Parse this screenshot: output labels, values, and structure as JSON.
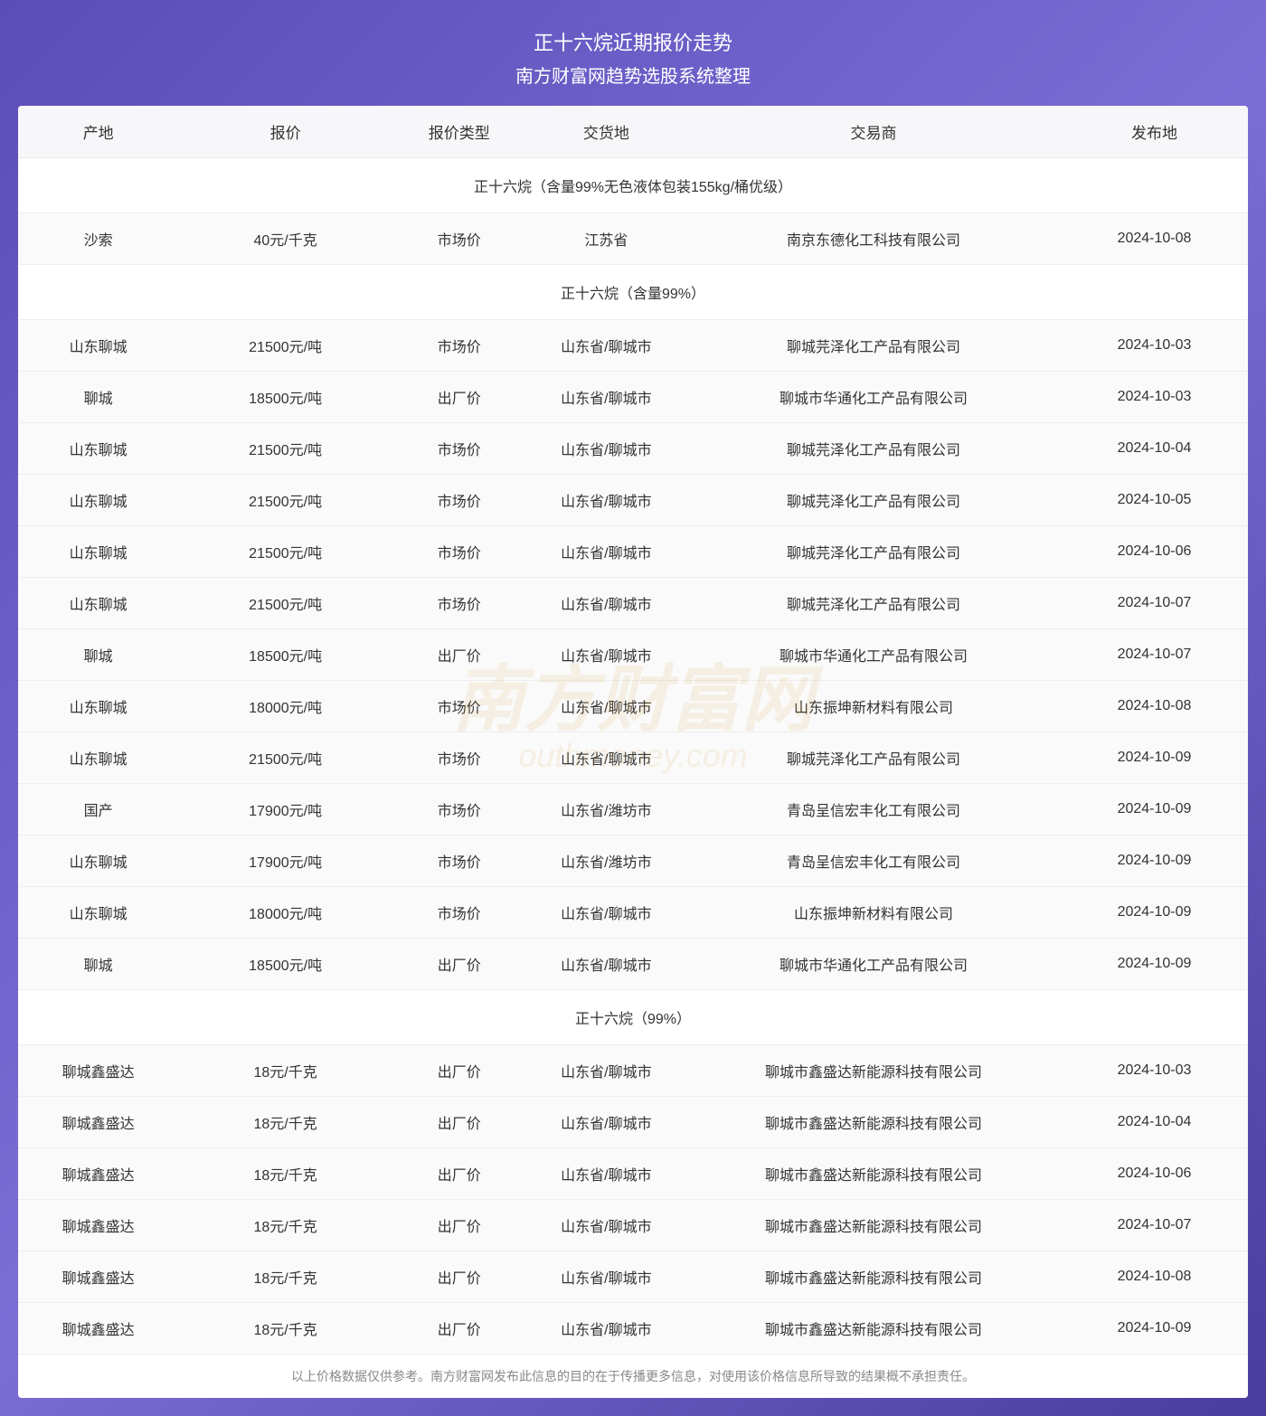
{
  "header": {
    "title": "正十六烷近期报价走势",
    "subtitle": "南方财富网趋势选股系统整理"
  },
  "columns": {
    "origin": "产地",
    "price": "报价",
    "priceType": "报价类型",
    "location": "交货地",
    "trader": "交易商",
    "date": "发布地"
  },
  "sections": [
    {
      "title": "正十六烷（含量99%无色液体包装155kg/桶优级）",
      "rows": [
        {
          "origin": "沙索",
          "price": "40元/千克",
          "priceType": "市场价",
          "location": "江苏省",
          "trader": "南京东德化工科技有限公司",
          "date": "2024-10-08"
        }
      ]
    },
    {
      "title": "正十六烷（含量99%）",
      "rows": [
        {
          "origin": "山东聊城",
          "price": "21500元/吨",
          "priceType": "市场价",
          "location": "山东省/聊城市",
          "trader": "聊城芫泽化工产品有限公司",
          "date": "2024-10-03"
        },
        {
          "origin": "聊城",
          "price": "18500元/吨",
          "priceType": "出厂价",
          "location": "山东省/聊城市",
          "trader": "聊城市华通化工产品有限公司",
          "date": "2024-10-03"
        },
        {
          "origin": "山东聊城",
          "price": "21500元/吨",
          "priceType": "市场价",
          "location": "山东省/聊城市",
          "trader": "聊城芫泽化工产品有限公司",
          "date": "2024-10-04"
        },
        {
          "origin": "山东聊城",
          "price": "21500元/吨",
          "priceType": "市场价",
          "location": "山东省/聊城市",
          "trader": "聊城芫泽化工产品有限公司",
          "date": "2024-10-05"
        },
        {
          "origin": "山东聊城",
          "price": "21500元/吨",
          "priceType": "市场价",
          "location": "山东省/聊城市",
          "trader": "聊城芫泽化工产品有限公司",
          "date": "2024-10-06"
        },
        {
          "origin": "山东聊城",
          "price": "21500元/吨",
          "priceType": "市场价",
          "location": "山东省/聊城市",
          "trader": "聊城芫泽化工产品有限公司",
          "date": "2024-10-07"
        },
        {
          "origin": "聊城",
          "price": "18500元/吨",
          "priceType": "出厂价",
          "location": "山东省/聊城市",
          "trader": "聊城市华通化工产品有限公司",
          "date": "2024-10-07"
        },
        {
          "origin": "山东聊城",
          "price": "18000元/吨",
          "priceType": "市场价",
          "location": "山东省/聊城市",
          "trader": "山东振坤新材料有限公司",
          "date": "2024-10-08"
        },
        {
          "origin": "山东聊城",
          "price": "21500元/吨",
          "priceType": "市场价",
          "location": "山东省/聊城市",
          "trader": "聊城芫泽化工产品有限公司",
          "date": "2024-10-09"
        },
        {
          "origin": "国产",
          "price": "17900元/吨",
          "priceType": "市场价",
          "location": "山东省/潍坊市",
          "trader": "青岛呈信宏丰化工有限公司",
          "date": "2024-10-09"
        },
        {
          "origin": "山东聊城",
          "price": "17900元/吨",
          "priceType": "市场价",
          "location": "山东省/潍坊市",
          "trader": "青岛呈信宏丰化工有限公司",
          "date": "2024-10-09"
        },
        {
          "origin": "山东聊城",
          "price": "18000元/吨",
          "priceType": "市场价",
          "location": "山东省/聊城市",
          "trader": "山东振坤新材料有限公司",
          "date": "2024-10-09"
        },
        {
          "origin": "聊城",
          "price": "18500元/吨",
          "priceType": "出厂价",
          "location": "山东省/聊城市",
          "trader": "聊城市华通化工产品有限公司",
          "date": "2024-10-09"
        }
      ]
    },
    {
      "title": "正十六烷（99%）",
      "rows": [
        {
          "origin": "聊城鑫盛达",
          "price": "18元/千克",
          "priceType": "出厂价",
          "location": "山东省/聊城市",
          "trader": "聊城市鑫盛达新能源科技有限公司",
          "date": "2024-10-03"
        },
        {
          "origin": "聊城鑫盛达",
          "price": "18元/千克",
          "priceType": "出厂价",
          "location": "山东省/聊城市",
          "trader": "聊城市鑫盛达新能源科技有限公司",
          "date": "2024-10-04"
        },
        {
          "origin": "聊城鑫盛达",
          "price": "18元/千克",
          "priceType": "出厂价",
          "location": "山东省/聊城市",
          "trader": "聊城市鑫盛达新能源科技有限公司",
          "date": "2024-10-06"
        },
        {
          "origin": "聊城鑫盛达",
          "price": "18元/千克",
          "priceType": "出厂价",
          "location": "山东省/聊城市",
          "trader": "聊城市鑫盛达新能源科技有限公司",
          "date": "2024-10-07"
        },
        {
          "origin": "聊城鑫盛达",
          "price": "18元/千克",
          "priceType": "出厂价",
          "location": "山东省/聊城市",
          "trader": "聊城市鑫盛达新能源科技有限公司",
          "date": "2024-10-08"
        },
        {
          "origin": "聊城鑫盛达",
          "price": "18元/千克",
          "priceType": "出厂价",
          "location": "山东省/聊城市",
          "trader": "聊城市鑫盛达新能源科技有限公司",
          "date": "2024-10-09"
        }
      ]
    }
  ],
  "footer": "以上价格数据仅供参考。南方财富网发布此信息的目的在于传播更多信息，对使用该价格信息所导致的结果概不承担责任。",
  "watermark": {
    "main": "南方财富网",
    "sub": "outhmoney.com"
  },
  "styling": {
    "background_gradient": [
      "#5b4db8",
      "#7b6dd4",
      "#4a3d9e"
    ],
    "header_bg": "#f7f7fa",
    "row_bg": "#fafafa",
    "section_bg": "#ffffff",
    "text_color": "#333333",
    "border_color": "#e8e8e8",
    "footer_color": "#888888",
    "watermark_color": "#d4a03a",
    "title_fontsize": 22,
    "cell_fontsize": 16,
    "footer_fontsize": 14
  }
}
